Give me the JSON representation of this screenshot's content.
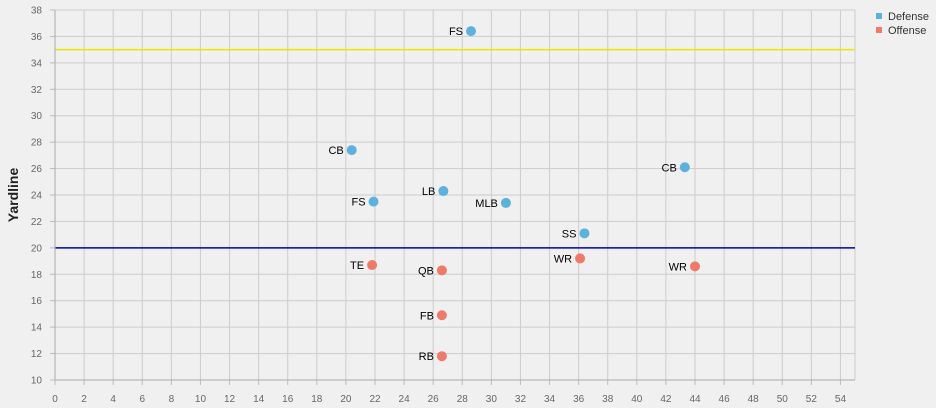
{
  "chart_data": {
    "type": "scatter",
    "title": "",
    "xlabel": "",
    "ylabel": "Yardline",
    "xlim": [
      0,
      55
    ],
    "ylim": [
      10,
      38
    ],
    "x_ticks": [
      0,
      2,
      4,
      6,
      8,
      10,
      12,
      14,
      16,
      18,
      20,
      22,
      24,
      26,
      28,
      30,
      32,
      34,
      36,
      38,
      40,
      42,
      44,
      46,
      48,
      50,
      52,
      54
    ],
    "y_ticks": [
      10,
      12,
      14,
      16,
      18,
      20,
      22,
      24,
      26,
      28,
      30,
      32,
      34,
      36,
      38
    ],
    "grid": true,
    "legend_position": "top-right",
    "reference_lines": [
      {
        "y": 35,
        "color": "#e6e600"
      },
      {
        "y": 20,
        "color": "#0000bb"
      }
    ],
    "series": [
      {
        "name": "Defense",
        "color": "#5db1dd",
        "points": [
          {
            "label": "FS",
            "x": 28.6,
            "y": 36.4
          },
          {
            "label": "CB",
            "x": 20.4,
            "y": 27.4
          },
          {
            "label": "CB",
            "x": 43.3,
            "y": 26.1
          },
          {
            "label": "LB",
            "x": 26.7,
            "y": 24.3
          },
          {
            "label": "FS",
            "x": 21.9,
            "y": 23.5
          },
          {
            "label": "MLB",
            "x": 31.0,
            "y": 23.4
          },
          {
            "label": "SS",
            "x": 36.4,
            "y": 21.1
          }
        ]
      },
      {
        "name": "Offense",
        "color": "#f07a6a",
        "points": [
          {
            "label": "TE",
            "x": 21.8,
            "y": 18.7
          },
          {
            "label": "QB",
            "x": 26.6,
            "y": 18.3
          },
          {
            "label": "WR",
            "x": 36.1,
            "y": 19.2
          },
          {
            "label": "WR",
            "x": 44.0,
            "y": 18.6
          },
          {
            "label": "FB",
            "x": 26.6,
            "y": 14.9
          },
          {
            "label": "RB",
            "x": 26.6,
            "y": 11.8
          }
        ]
      }
    ]
  }
}
